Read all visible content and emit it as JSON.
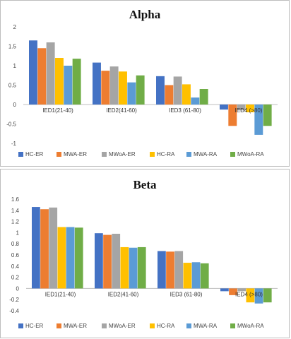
{
  "chart_data": [
    {
      "type": "bar",
      "title": "Alpha",
      "categories": [
        "IED1(21-40)",
        "IED2(41-60)",
        "IED3 (61-80)",
        "IED4 (>80)"
      ],
      "series": [
        {
          "name": "HC-ER",
          "color": "#4472C4",
          "values": [
            1.65,
            1.08,
            0.73,
            -0.13
          ]
        },
        {
          "name": "MWA-ER",
          "color": "#ED7D31",
          "values": [
            1.45,
            0.87,
            0.5,
            -0.55
          ]
        },
        {
          "name": "MWoA-ER",
          "color": "#A5A5A5",
          "values": [
            1.6,
            0.98,
            0.72,
            -0.15
          ]
        },
        {
          "name": "HC-RA",
          "color": "#FFC000",
          "values": [
            1.2,
            0.85,
            0.52,
            -0.2
          ]
        },
        {
          "name": "MWA-RA",
          "color": "#5B9BD5",
          "values": [
            1.0,
            0.57,
            0.18,
            -0.78
          ]
        },
        {
          "name": "MWoA-RA",
          "color": "#70AD47",
          "values": [
            1.18,
            0.75,
            0.4,
            -0.55
          ]
        }
      ],
      "ylim": [
        -1,
        2
      ],
      "yticks": [
        -1,
        -0.5,
        0,
        0.5,
        1,
        1.5,
        2
      ],
      "ytick_labels": [
        "-1",
        "-0.5",
        "0",
        "0.5",
        "1",
        "1.5",
        "2"
      ],
      "legend": "bottom",
      "grid": false
    },
    {
      "type": "bar",
      "title": "Beta",
      "categories": [
        "IED1(21-40)",
        "IED2(41-60)",
        "IED3 (61-80)",
        "IED4 (>80)"
      ],
      "series": [
        {
          "name": "HC-ER",
          "color": "#4472C4",
          "values": [
            1.46,
            0.99,
            0.67,
            -0.05
          ]
        },
        {
          "name": "MWA-ER",
          "color": "#ED7D31",
          "values": [
            1.42,
            0.96,
            0.66,
            -0.12
          ]
        },
        {
          "name": "MWoA-ER",
          "color": "#A5A5A5",
          "values": [
            1.45,
            0.98,
            0.67,
            -0.05
          ]
        },
        {
          "name": "HC-RA",
          "color": "#FFC000",
          "values": [
            1.1,
            0.74,
            0.46,
            -0.25
          ]
        },
        {
          "name": "MWA-RA",
          "color": "#5B9BD5",
          "values": [
            1.1,
            0.73,
            0.47,
            -0.27
          ]
        },
        {
          "name": "MWoA-RA",
          "color": "#70AD47",
          "values": [
            1.09,
            0.74,
            0.45,
            -0.25
          ]
        }
      ],
      "ylim": [
        -0.4,
        1.6
      ],
      "yticks": [
        -0.4,
        -0.2,
        0,
        0.2,
        0.4,
        0.6,
        0.8,
        1,
        1.2,
        1.4,
        1.6
      ],
      "ytick_labels": [
        "-0.4",
        "-0.2",
        "0",
        "0.2",
        "0.4",
        "0.6",
        "0.8",
        "1",
        "1.2",
        "1.4",
        "1.6"
      ],
      "legend": "bottom",
      "grid": false
    }
  ]
}
